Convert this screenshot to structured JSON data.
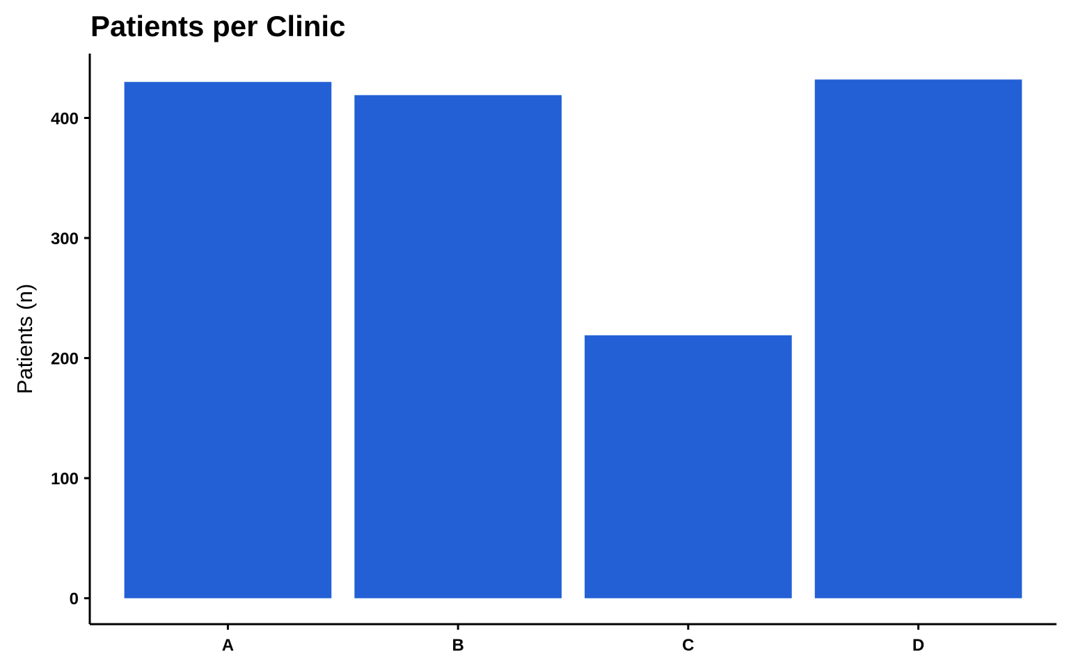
{
  "chart_data": {
    "type": "bar",
    "title": "Patients per Clinic",
    "xlabel": "",
    "ylabel": "Patients (n)",
    "categories": [
      "A",
      "B",
      "C",
      "D"
    ],
    "values": [
      430,
      419,
      219,
      432
    ],
    "ylim": [
      -21.6,
      453.6
    ],
    "yticks": [
      0,
      100,
      200,
      300,
      400
    ],
    "grid": false,
    "legend": "none",
    "bar_color": "#2360D6"
  }
}
